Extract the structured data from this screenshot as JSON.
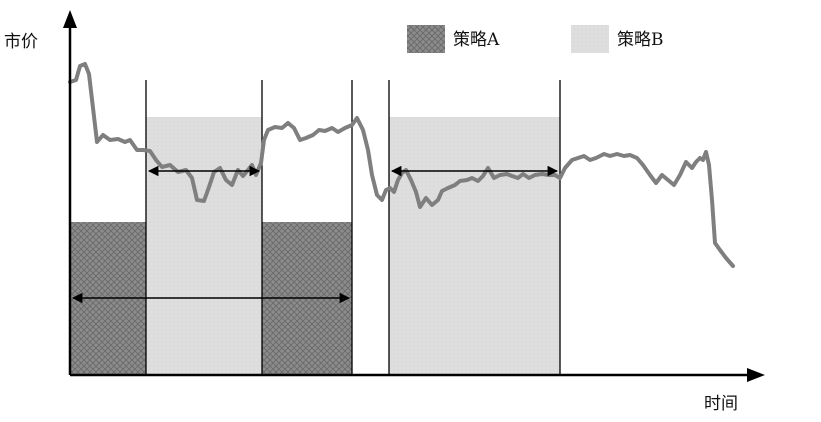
{
  "axes": {
    "y_label": "市价",
    "x_label": "时间"
  },
  "legend": {
    "items": [
      {
        "label": "策略A",
        "style": "dark-crosshatch",
        "color": "#8a8a8a"
      },
      {
        "label": "策略B",
        "style": "light-dotted",
        "color": "#dcdcdc"
      }
    ]
  },
  "colors": {
    "axis": "#000000",
    "price_line": "#7f7f7f",
    "strategy_a_fill": "#8a8a8a",
    "strategy_b_fill": "#dcdcdc"
  }
}
